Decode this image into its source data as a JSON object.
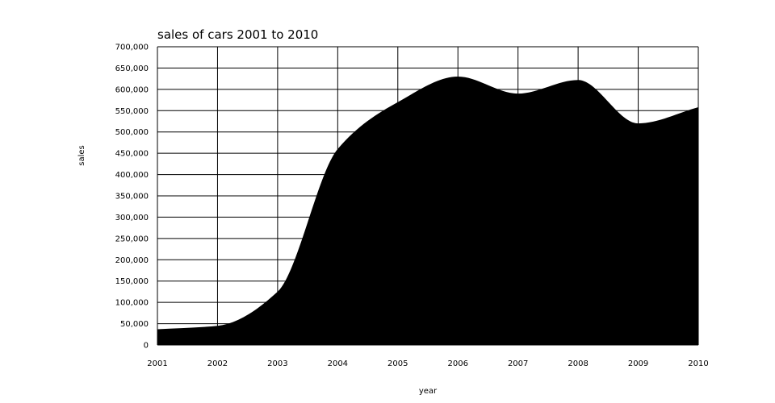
{
  "chart_data": {
    "type": "area",
    "title": "sales of cars 2001 to 2010",
    "xlabel": "year",
    "ylabel": "sales",
    "x": [
      "2001",
      "2002",
      "2003",
      "2004",
      "2005",
      "2006",
      "2007",
      "2008",
      "2009",
      "2010"
    ],
    "y_tick_labels": [
      "0",
      "50,000",
      "100,000",
      "150,000",
      "200,000",
      "250,000",
      "300,000",
      "350,000",
      "400,000",
      "450,000",
      "500,000",
      "550,000",
      "600,000",
      "650,000",
      "700,000"
    ],
    "ylim": [
      0,
      700000
    ],
    "grid": true,
    "series": [
      {
        "values": [
          37000,
          45000,
          125000,
          460000,
          570000,
          630000,
          590000,
          622000,
          520000,
          558000
        ],
        "color": "#000000"
      }
    ]
  }
}
